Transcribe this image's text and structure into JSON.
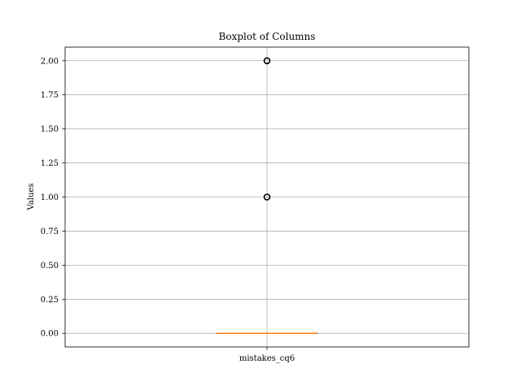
{
  "chart_data": {
    "type": "box",
    "title": "Boxplot of Columns",
    "xlabel": "",
    "ylabel": "Values",
    "categories": [
      "mistakes_cq6"
    ],
    "ylim": [
      -0.1,
      2.1
    ],
    "yticks": [
      0.0,
      0.25,
      0.5,
      0.75,
      1.0,
      1.25,
      1.5,
      1.75,
      2.0
    ],
    "ytick_labels": [
      "0.00",
      "0.25",
      "0.50",
      "0.75",
      "1.00",
      "1.25",
      "1.50",
      "1.75",
      "2.00"
    ],
    "grid": true,
    "boxes": [
      {
        "name": "mistakes_cq6",
        "min": 0,
        "q1": 0,
        "median": 0,
        "q3": 0,
        "max": 0,
        "outliers": [
          1,
          2
        ]
      }
    ],
    "colors": {
      "box": "#000000",
      "median": "#ff7f0e",
      "grid": "#b0b0b0",
      "outlier_edge": "#000000"
    }
  }
}
